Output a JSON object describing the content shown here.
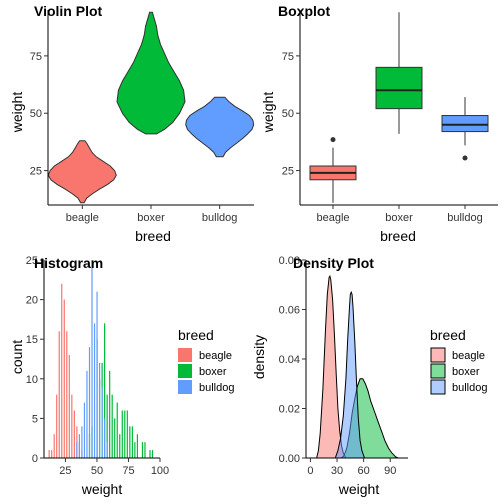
{
  "colors": {
    "beagle": "#F8766D",
    "boxer": "#00BA38",
    "bulldog": "#619CFF"
  },
  "chart_data": [
    {
      "type": "violin",
      "title": "Violin Plot",
      "xlabel": "breed",
      "ylabel": "weight",
      "categories": [
        "beagle",
        "boxer",
        "bulldog"
      ],
      "ylim": [
        10,
        95
      ],
      "yticks": [
        25,
        50,
        75
      ],
      "grid": false,
      "series": [
        {
          "category": "beagle",
          "min": 11,
          "max": 38,
          "profile": [
            [
              11,
              0.02
            ],
            [
              13,
              0.05
            ],
            [
              15,
              0.12
            ],
            [
              17,
              0.2
            ],
            [
              19,
              0.29
            ],
            [
              21,
              0.36
            ],
            [
              23,
              0.39
            ],
            [
              25,
              0.37
            ],
            [
              27,
              0.32
            ],
            [
              29,
              0.24
            ],
            [
              31,
              0.16
            ],
            [
              33,
              0.11
            ],
            [
              35,
              0.08
            ],
            [
              37,
              0.05
            ],
            [
              38,
              0.03
            ]
          ]
        },
        {
          "category": "boxer",
          "min": 41,
          "max": 94,
          "profile": [
            [
              41,
              0.04
            ],
            [
              43,
              0.1
            ],
            [
              46,
              0.16
            ],
            [
              50,
              0.21
            ],
            [
              55,
              0.25
            ],
            [
              60,
              0.24
            ],
            [
              64,
              0.21
            ],
            [
              68,
              0.17
            ],
            [
              72,
              0.13
            ],
            [
              76,
              0.1
            ],
            [
              80,
              0.07
            ],
            [
              84,
              0.05
            ],
            [
              88,
              0.04
            ],
            [
              91,
              0.025
            ],
            [
              94,
              0.01
            ]
          ]
        },
        {
          "category": "bulldog",
          "min": 31,
          "max": 57,
          "profile": [
            [
              31,
              0.04
            ],
            [
              33,
              0.07
            ],
            [
              35,
              0.13
            ],
            [
              37,
              0.2
            ],
            [
              39,
              0.27
            ],
            [
              41,
              0.33
            ],
            [
              43,
              0.38
            ],
            [
              45,
              0.4
            ],
            [
              47,
              0.39
            ],
            [
              49,
              0.35
            ],
            [
              51,
              0.27
            ],
            [
              53,
              0.18
            ],
            [
              55,
              0.11
            ],
            [
              57,
              0.06
            ]
          ]
        }
      ]
    },
    {
      "type": "boxplot",
      "title": "Boxplot",
      "xlabel": "breed",
      "ylabel": "weight",
      "categories": [
        "beagle",
        "boxer",
        "bulldog"
      ],
      "ylim": [
        10,
        95
      ],
      "yticks": [
        25,
        50,
        75
      ],
      "grid": false,
      "series": [
        {
          "category": "beagle",
          "whisker_low": 11,
          "q1": 21,
          "median": 24,
          "q3": 27,
          "whisker_high": 35,
          "outliers": [
            38.5
          ]
        },
        {
          "category": "boxer",
          "whisker_low": 41,
          "q1": 52,
          "median": 60,
          "q3": 70,
          "whisker_high": 94,
          "outliers": []
        },
        {
          "category": "bulldog",
          "whisker_low": 36,
          "q1": 42,
          "median": 45,
          "q3": 49,
          "whisker_high": 57,
          "outliers": [
            30.5
          ]
        }
      ]
    },
    {
      "type": "histogram",
      "title": "Histogram",
      "xlabel": "weight",
      "ylabel": "count",
      "xlim": [
        8,
        100
      ],
      "ylim": [
        0,
        25
      ],
      "xticks": [
        25,
        50,
        75,
        100
      ],
      "yticks": [
        0,
        5,
        10,
        15,
        20,
        25
      ],
      "legend_title": "breed",
      "legend_position": "right",
      "series": [
        {
          "name": "beagle",
          "bars": [
            [
              12,
              1
            ],
            [
              14,
              1
            ],
            [
              16,
              3
            ],
            [
              18,
              8
            ],
            [
              20,
              16
            ],
            [
              22,
              22
            ],
            [
              24,
              20
            ],
            [
              26,
              16
            ],
            [
              28,
              13
            ],
            [
              30,
              8
            ],
            [
              32,
              6
            ],
            [
              34,
              4
            ],
            [
              36,
              2
            ],
            [
              38,
              1
            ]
          ]
        },
        {
          "name": "boxer",
          "bars": [
            [
              44,
              3
            ],
            [
              46,
              4
            ],
            [
              50,
              15
            ],
            [
              52,
              10
            ],
            [
              54,
              12
            ],
            [
              56,
              17
            ],
            [
              58,
              8
            ],
            [
              60,
              11
            ],
            [
              62,
              8
            ],
            [
              64,
              5
            ],
            [
              66,
              7
            ],
            [
              68,
              3
            ],
            [
              70,
              6
            ],
            [
              72,
              6
            ],
            [
              74,
              6
            ],
            [
              76,
              4
            ],
            [
              78,
              4
            ],
            [
              80,
              2
            ],
            [
              82,
              3
            ],
            [
              86,
              2
            ],
            [
              88,
              2
            ],
            [
              92,
              1
            ],
            [
              94,
              1
            ]
          ]
        },
        {
          "name": "bulldog",
          "bars": [
            [
              34,
              2
            ],
            [
              36,
              3
            ],
            [
              38,
              4
            ],
            [
              40,
              7
            ],
            [
              42,
              11
            ],
            [
              44,
              14
            ],
            [
              46,
              25
            ],
            [
              48,
              17
            ],
            [
              50,
              21
            ],
            [
              52,
              12
            ],
            [
              54,
              9
            ],
            [
              56,
              5
            ],
            [
              58,
              2
            ]
          ]
        }
      ]
    },
    {
      "type": "density",
      "title": "Density Plot",
      "xlabel": "weight",
      "ylabel": "density",
      "xlim": [
        -5,
        110
      ],
      "ylim": [
        0,
        0.08
      ],
      "xticks": [
        0,
        30,
        60,
        90
      ],
      "yticks": [
        "0.00",
        "0.02",
        "0.04",
        "0.06",
        "0.08"
      ],
      "legend_title": "breed",
      "legend_position": "right",
      "series": [
        {
          "name": "beagle",
          "points": [
            [
              7,
              0
            ],
            [
              9,
              0.003
            ],
            [
              11,
              0.01
            ],
            [
              14,
              0.028
            ],
            [
              17,
              0.052
            ],
            [
              19,
              0.066
            ],
            [
              21,
              0.073
            ],
            [
              22,
              0.0735
            ],
            [
              23,
              0.072
            ],
            [
              25,
              0.064
            ],
            [
              27,
              0.05
            ],
            [
              29,
              0.034
            ],
            [
              31,
              0.02
            ],
            [
              33,
              0.011
            ],
            [
              35,
              0.005
            ],
            [
              37,
              0.002
            ],
            [
              40,
              0
            ]
          ]
        },
        {
          "name": "boxer",
          "points": [
            [
              35,
              0
            ],
            [
              38,
              0.001
            ],
            [
              41,
              0.004
            ],
            [
              44,
              0.01
            ],
            [
              47,
              0.018
            ],
            [
              50,
              0.024
            ],
            [
              53,
              0.029
            ],
            [
              56,
              0.032
            ],
            [
              59,
              0.032
            ],
            [
              62,
              0.03
            ],
            [
              65,
              0.027
            ],
            [
              68,
              0.023
            ],
            [
              72,
              0.019
            ],
            [
              76,
              0.015
            ],
            [
              80,
              0.011
            ],
            [
              84,
              0.007
            ],
            [
              88,
              0.004
            ],
            [
              92,
              0.002
            ],
            [
              96,
              0.0005
            ],
            [
              99,
              0
            ]
          ]
        },
        {
          "name": "bulldog",
          "points": [
            [
              28,
              0
            ],
            [
              31,
              0.003
            ],
            [
              34,
              0.008
            ],
            [
              37,
              0.017
            ],
            [
              40,
              0.032
            ],
            [
              42,
              0.048
            ],
            [
              44,
              0.061
            ],
            [
              45,
              0.066
            ],
            [
              46,
              0.067
            ],
            [
              47,
              0.066
            ],
            [
              48,
              0.061
            ],
            [
              50,
              0.047
            ],
            [
              52,
              0.03
            ],
            [
              54,
              0.016
            ],
            [
              56,
              0.007
            ],
            [
              58,
              0.003
            ],
            [
              61,
              0
            ]
          ]
        }
      ]
    }
  ]
}
